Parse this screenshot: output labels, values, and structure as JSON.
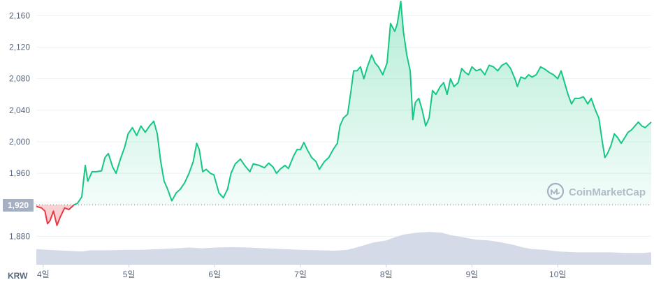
{
  "colors": {
    "up_line": "#16c784",
    "down_line": "#ea3943",
    "fill_top": "#16c784",
    "grid": "#eff2f5",
    "tick_text": "#58667e",
    "volume": "#cfd6e4",
    "baseline_label_bg": "#a6b0c3",
    "watermark": "#a6b0c3"
  },
  "currency_label": "KRW",
  "watermark_text": "CoinMarketCap",
  "chart_data": {
    "type": "area",
    "title": "",
    "xlabel": "",
    "ylabel": "",
    "y_ticks": [
      1880,
      1920,
      1960,
      2000,
      2040,
      2080,
      2120,
      2160
    ],
    "y_tick_labels": [
      "1,880",
      "1,920",
      "1,960",
      "2,000",
      "2,040",
      "2,080",
      "2,120",
      "2,160"
    ],
    "ylim": [
      1845,
      2178
    ],
    "xlim_days": [
      3.92,
      11.09
    ],
    "x_ticks": [
      {
        "day": 4,
        "label": "4일"
      },
      {
        "day": 5,
        "label": "5일"
      },
      {
        "day": 6,
        "label": "6일"
      },
      {
        "day": 7,
        "label": "7일"
      },
      {
        "day": 8,
        "label": "8일"
      },
      {
        "day": 9,
        "label": "9일"
      },
      {
        "day": 10,
        "label": "10일"
      }
    ],
    "baseline": {
      "value": 1920,
      "label": "1,920"
    },
    "grid": true,
    "legend": "none",
    "series": [
      {
        "points": [
          [
            3.92,
            1918
          ],
          [
            3.98,
            1916
          ],
          [
            4.02,
            1912
          ],
          [
            4.05,
            1896
          ],
          [
            4.08,
            1900
          ],
          [
            4.12,
            1912
          ],
          [
            4.16,
            1894
          ],
          [
            4.2,
            1905
          ],
          [
            4.25,
            1916
          ],
          [
            4.3,
            1914
          ],
          [
            4.36,
            1920
          ],
          [
            4.4,
            1922
          ],
          [
            4.45,
            1930
          ],
          [
            4.49,
            1970
          ],
          [
            4.52,
            1950
          ],
          [
            4.57,
            1962
          ],
          [
            4.62,
            1962
          ],
          [
            4.68,
            1963
          ],
          [
            4.72,
            1980
          ],
          [
            4.76,
            1985
          ],
          [
            4.81,
            1968
          ],
          [
            4.85,
            1960
          ],
          [
            4.9,
            1978
          ],
          [
            4.95,
            1993
          ],
          [
            4.99,
            2010
          ],
          [
            5.04,
            2018
          ],
          [
            5.09,
            2008
          ],
          [
            5.14,
            2020
          ],
          [
            5.19,
            2012
          ],
          [
            5.24,
            2020
          ],
          [
            5.29,
            2026
          ],
          [
            5.33,
            2010
          ],
          [
            5.37,
            1975
          ],
          [
            5.41,
            1950
          ],
          [
            5.45,
            1940
          ],
          [
            5.5,
            1925
          ],
          [
            5.55,
            1935
          ],
          [
            5.6,
            1940
          ],
          [
            5.65,
            1948
          ],
          [
            5.7,
            1960
          ],
          [
            5.75,
            1975
          ],
          [
            5.79,
            1998
          ],
          [
            5.82,
            1990
          ],
          [
            5.86,
            1962
          ],
          [
            5.9,
            1965
          ],
          [
            5.95,
            1960
          ],
          [
            5.99,
            1958
          ],
          [
            6.05,
            1935
          ],
          [
            6.1,
            1929
          ],
          [
            6.15,
            1940
          ],
          [
            6.19,
            1960
          ],
          [
            6.24,
            1972
          ],
          [
            6.3,
            1978
          ],
          [
            6.35,
            1970
          ],
          [
            6.41,
            1962
          ],
          [
            6.45,
            1972
          ],
          [
            6.52,
            1970
          ],
          [
            6.58,
            1967
          ],
          [
            6.63,
            1973
          ],
          [
            6.68,
            1968
          ],
          [
            6.72,
            1960
          ],
          [
            6.77,
            1966
          ],
          [
            6.82,
            1970
          ],
          [
            6.86,
            1966
          ],
          [
            6.92,
            1982
          ],
          [
            6.96,
            1990
          ],
          [
            7.0,
            1990
          ],
          [
            7.04,
            1999
          ],
          [
            7.08,
            1990
          ],
          [
            7.13,
            1980
          ],
          [
            7.18,
            1975
          ],
          [
            7.22,
            1965
          ],
          [
            7.28,
            1975
          ],
          [
            7.33,
            1980
          ],
          [
            7.38,
            1990
          ],
          [
            7.43,
            1998
          ],
          [
            7.46,
            2020
          ],
          [
            7.5,
            2030
          ],
          [
            7.55,
            2035
          ],
          [
            7.59,
            2065
          ],
          [
            7.62,
            2090
          ],
          [
            7.66,
            2090
          ],
          [
            7.7,
            2095
          ],
          [
            7.74,
            2080
          ],
          [
            7.78,
            2095
          ],
          [
            7.83,
            2110
          ],
          [
            7.87,
            2100
          ],
          [
            7.91,
            2095
          ],
          [
            7.96,
            2085
          ],
          [
            8.01,
            2100
          ],
          [
            8.05,
            2150
          ],
          [
            8.1,
            2140
          ],
          [
            8.13,
            2150
          ],
          [
            8.17,
            2178
          ],
          [
            8.2,
            2140
          ],
          [
            8.24,
            2110
          ],
          [
            8.28,
            2090
          ],
          [
            8.31,
            2028
          ],
          [
            8.34,
            2050
          ],
          [
            8.38,
            2055
          ],
          [
            8.42,
            2040
          ],
          [
            8.46,
            2020
          ],
          [
            8.5,
            2030
          ],
          [
            8.54,
            2065
          ],
          [
            8.58,
            2060
          ],
          [
            8.63,
            2070
          ],
          [
            8.67,
            2075
          ],
          [
            8.71,
            2060
          ],
          [
            8.75,
            2080
          ],
          [
            8.79,
            2070
          ],
          [
            8.84,
            2075
          ],
          [
            8.88,
            2093
          ],
          [
            8.92,
            2088
          ],
          [
            8.96,
            2085
          ],
          [
            9.0,
            2095
          ],
          [
            9.05,
            2090
          ],
          [
            9.1,
            2092
          ],
          [
            9.15,
            2085
          ],
          [
            9.2,
            2097
          ],
          [
            9.25,
            2095
          ],
          [
            9.3,
            2090
          ],
          [
            9.35,
            2097
          ],
          [
            9.4,
            2100
          ],
          [
            9.45,
            2093
          ],
          [
            9.5,
            2080
          ],
          [
            9.53,
            2070
          ],
          [
            9.57,
            2082
          ],
          [
            9.62,
            2080
          ],
          [
            9.66,
            2085
          ],
          [
            9.7,
            2082
          ],
          [
            9.75,
            2085
          ],
          [
            9.8,
            2095
          ],
          [
            9.85,
            2092
          ],
          [
            9.9,
            2088
          ],
          [
            9.95,
            2085
          ],
          [
            10.0,
            2080
          ],
          [
            10.04,
            2090
          ],
          [
            10.08,
            2075
          ],
          [
            10.12,
            2060
          ],
          [
            10.16,
            2048
          ],
          [
            10.2,
            2055
          ],
          [
            10.25,
            2055
          ],
          [
            10.3,
            2057
          ],
          [
            10.35,
            2048
          ],
          [
            10.39,
            2055
          ],
          [
            10.44,
            2040
          ],
          [
            10.48,
            2030
          ],
          [
            10.52,
            2000
          ],
          [
            10.55,
            1980
          ],
          [
            10.58,
            1985
          ],
          [
            10.62,
            1995
          ],
          [
            10.66,
            2010
          ],
          [
            10.7,
            2005
          ],
          [
            10.74,
            1998
          ],
          [
            10.78,
            2005
          ],
          [
            10.82,
            2012
          ],
          [
            10.86,
            2015
          ],
          [
            10.9,
            2020
          ],
          [
            10.94,
            2025
          ],
          [
            10.98,
            2020
          ],
          [
            11.02,
            2018
          ],
          [
            11.09,
            2025
          ]
        ]
      }
    ],
    "volume": [
      [
        3.92,
        0.38
      ],
      [
        4.05,
        0.36
      ],
      [
        4.25,
        0.34
      ],
      [
        4.45,
        0.32
      ],
      [
        4.55,
        0.35
      ],
      [
        4.75,
        0.35
      ],
      [
        5.0,
        0.36
      ],
      [
        5.15,
        0.36
      ],
      [
        5.35,
        0.38
      ],
      [
        5.55,
        0.4
      ],
      [
        5.7,
        0.42
      ],
      [
        5.85,
        0.4
      ],
      [
        6.0,
        0.42
      ],
      [
        6.2,
        0.43
      ],
      [
        6.4,
        0.42
      ],
      [
        6.6,
        0.4
      ],
      [
        6.8,
        0.38
      ],
      [
        7.0,
        0.36
      ],
      [
        7.2,
        0.35
      ],
      [
        7.4,
        0.34
      ],
      [
        7.55,
        0.36
      ],
      [
        7.7,
        0.45
      ],
      [
        7.85,
        0.55
      ],
      [
        8.0,
        0.6
      ],
      [
        8.1,
        0.68
      ],
      [
        8.2,
        0.75
      ],
      [
        8.35,
        0.8
      ],
      [
        8.5,
        0.82
      ],
      [
        8.65,
        0.8
      ],
      [
        8.75,
        0.74
      ],
      [
        8.9,
        0.68
      ],
      [
        9.05,
        0.62
      ],
      [
        9.2,
        0.6
      ],
      [
        9.35,
        0.55
      ],
      [
        9.5,
        0.48
      ],
      [
        9.6,
        0.42
      ],
      [
        9.7,
        0.38
      ],
      [
        9.85,
        0.36
      ],
      [
        10.0,
        0.32
      ],
      [
        10.2,
        0.3
      ],
      [
        10.4,
        0.3
      ],
      [
        10.6,
        0.3
      ],
      [
        10.8,
        0.28
      ],
      [
        11.0,
        0.28
      ],
      [
        11.09,
        0.3
      ]
    ]
  }
}
